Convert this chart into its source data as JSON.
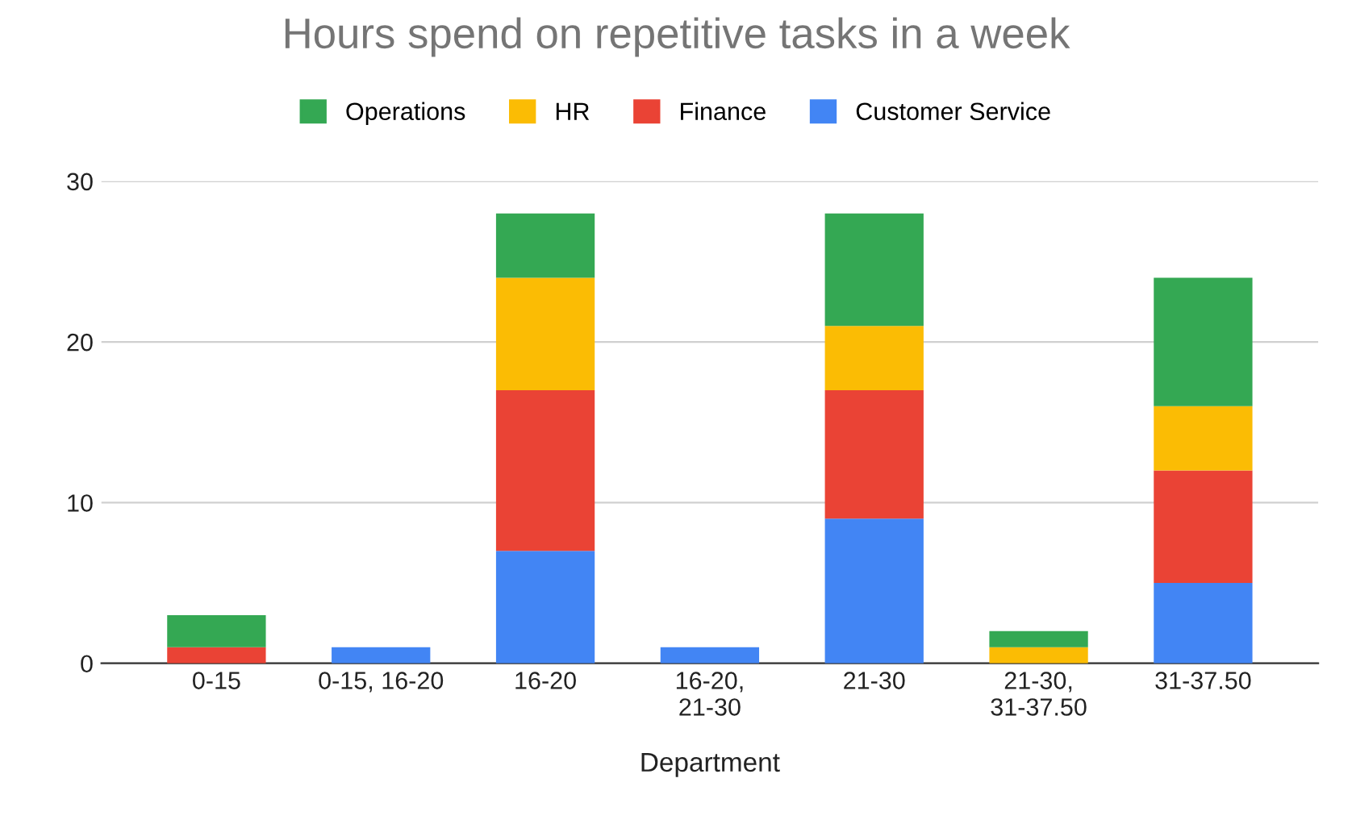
{
  "chart_data": {
    "type": "bar",
    "stacked": true,
    "title": "Hours spend on repetitive tasks in a week",
    "xlabel": "Department",
    "categories": [
      "0-15",
      "0-15, 16-20",
      "16-20",
      "16-20, 21-30",
      "21-30",
      "21-30, 31-37.50",
      "31-37.50"
    ],
    "series": [
      {
        "name": "Customer Service",
        "color": "#4285f4",
        "values": [
          0,
          1,
          7,
          1,
          9,
          0,
          5
        ]
      },
      {
        "name": "Finance",
        "color": "#ea4335",
        "values": [
          1,
          0,
          10,
          0,
          8,
          0,
          7
        ]
      },
      {
        "name": "HR",
        "color": "#fbbc04",
        "values": [
          0,
          0,
          7,
          0,
          4,
          1,
          4
        ]
      },
      {
        "name": "Operations",
        "color": "#34a853",
        "values": [
          2,
          0,
          4,
          0,
          7,
          1,
          8
        ]
      }
    ],
    "ylim": [
      0,
      30
    ],
    "yticks": [
      0,
      10,
      20,
      30
    ],
    "grid": "y",
    "legend": "top"
  }
}
